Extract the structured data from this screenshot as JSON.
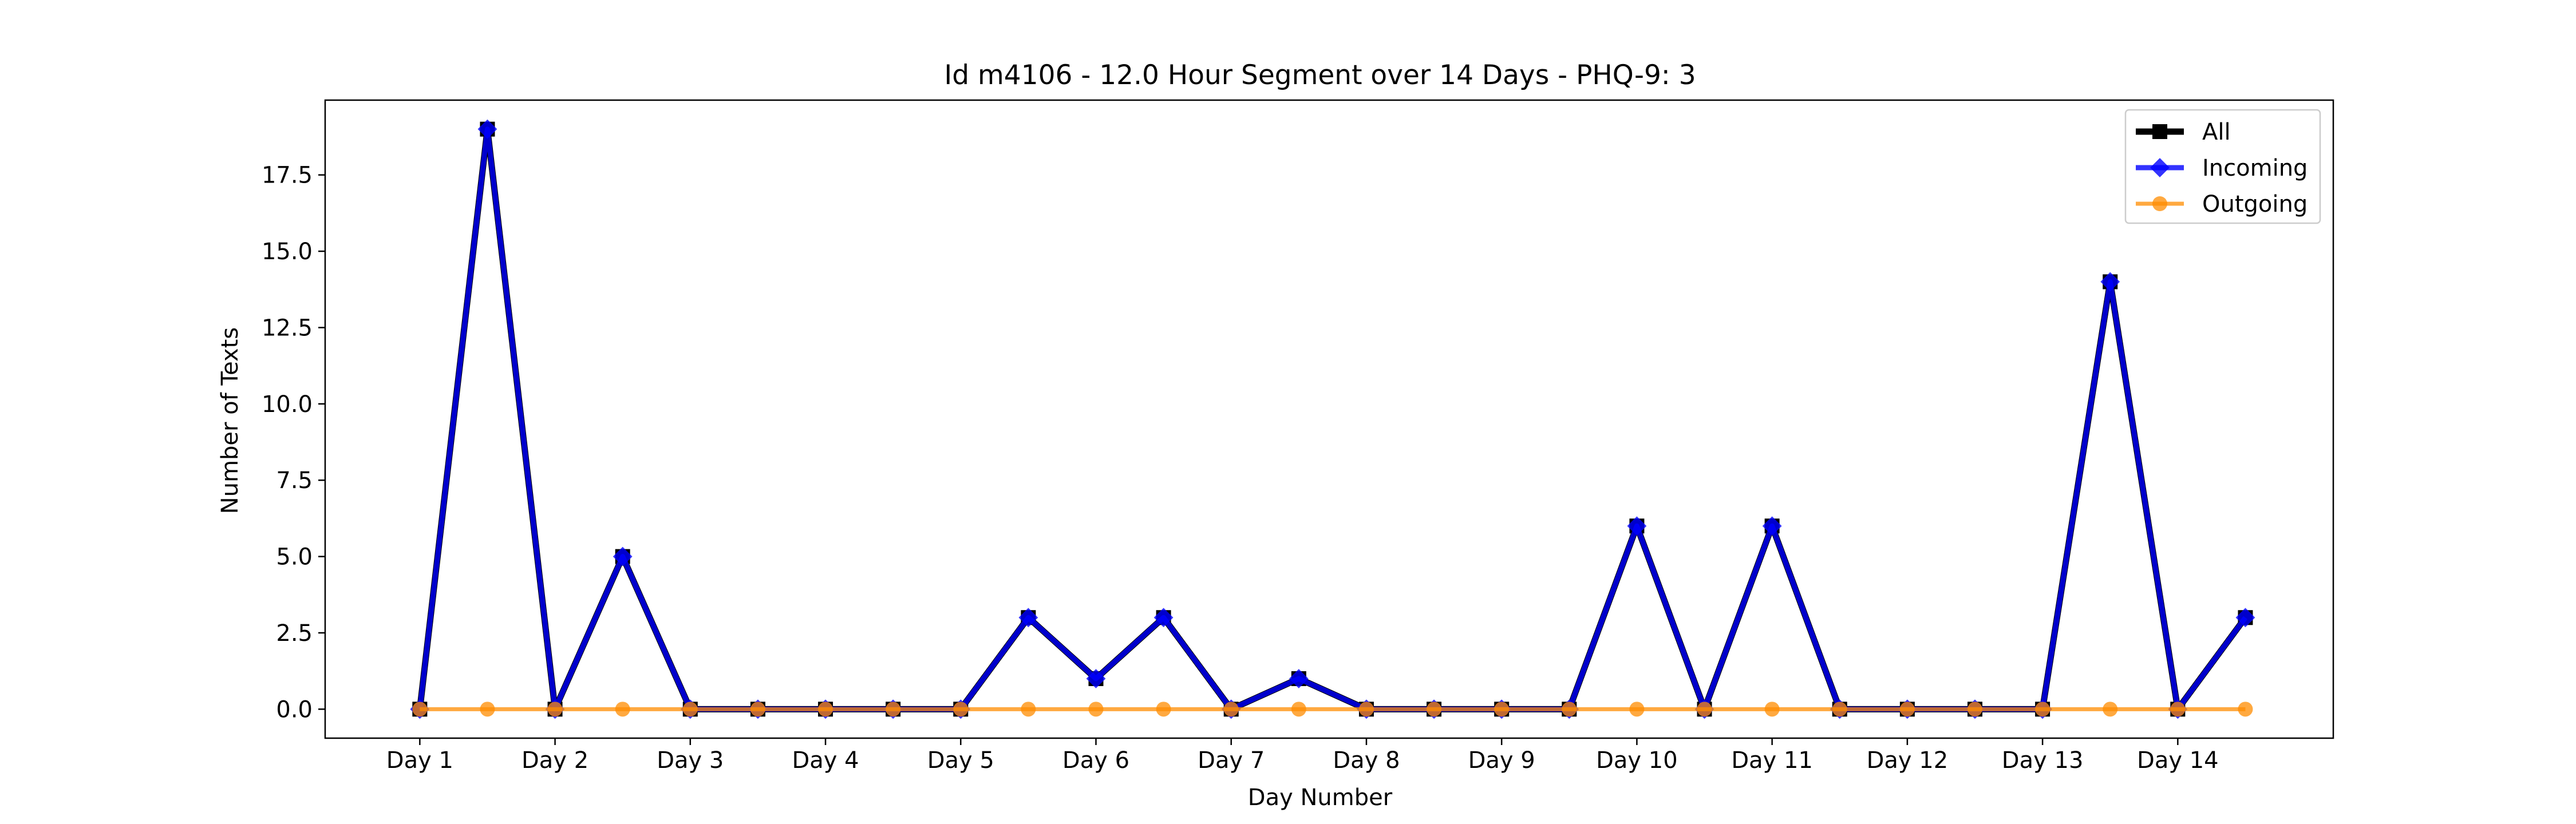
{
  "chart_data": {
    "type": "line",
    "title": "Id m4106 - 12.0 Hour Segment over 14 Days - PHQ-9: 3",
    "xlabel": "Day Number",
    "ylabel": "Number of Texts",
    "x_tick_labels": [
      "Day 1",
      "Day 2",
      "Day 3",
      "Day 4",
      "Day 5",
      "Day 6",
      "Day 7",
      "Day 8",
      "Day 9",
      "Day 10",
      "Day 11",
      "Day 12",
      "Day 13",
      "Day 14"
    ],
    "y_tick_labels": [
      "0.0",
      "2.5",
      "5.0",
      "7.5",
      "10.0",
      "12.5",
      "15.0",
      "17.5"
    ],
    "y_ticks": [
      0,
      2.5,
      5,
      7.5,
      10,
      12.5,
      15,
      17.5
    ],
    "xlim": [
      0.3,
      15.15
    ],
    "ylim": [
      -0.95,
      19.95
    ],
    "grid": false,
    "legend_position": "top-right",
    "x": [
      1,
      1.5,
      2,
      2.5,
      3,
      3.5,
      4,
      4.5,
      5,
      5.5,
      6,
      6.5,
      7,
      7.5,
      8,
      8.5,
      9,
      9.5,
      10,
      10.5,
      11,
      11.5,
      12,
      12.5,
      13,
      13.5,
      14,
      14.5
    ],
    "series": [
      {
        "name": "All",
        "color": "#000000",
        "marker": "square",
        "values": [
          0,
          19,
          0,
          5,
          0,
          0,
          0,
          0,
          0,
          3,
          1,
          3,
          0,
          1,
          0,
          0,
          0,
          0,
          6,
          0,
          6,
          0,
          0,
          0,
          0,
          14,
          0,
          3
        ]
      },
      {
        "name": "Incoming",
        "color": "#0000ff",
        "marker": "diamond",
        "values": [
          0,
          19,
          0,
          5,
          0,
          0,
          0,
          0,
          0,
          3,
          1,
          3,
          0,
          1,
          0,
          0,
          0,
          0,
          6,
          0,
          6,
          0,
          0,
          0,
          0,
          14,
          0,
          3
        ]
      },
      {
        "name": "Outgoing",
        "color": "#ff8c00",
        "marker": "circle",
        "values": [
          0,
          0,
          0,
          0,
          0,
          0,
          0,
          0,
          0,
          0,
          0,
          0,
          0,
          0,
          0,
          0,
          0,
          0,
          0,
          0,
          0,
          0,
          0,
          0,
          0,
          0,
          0,
          0
        ]
      }
    ]
  }
}
